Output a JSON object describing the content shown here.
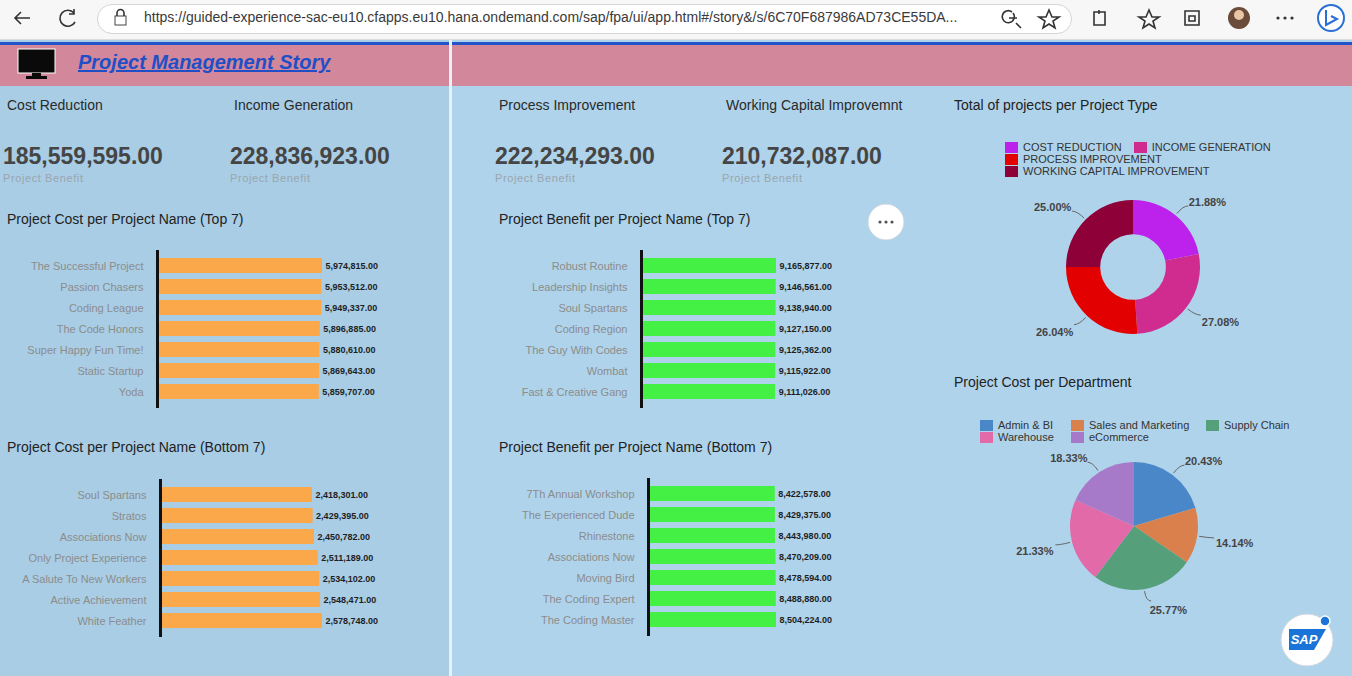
{
  "browser": {
    "url": "https://guided-experience-sac-eu10.cfapps.eu10.hana.ondemand.com/sap/fpa/ui/app.html#/story&/s/6C70F687986AD73CE55DA..."
  },
  "header": {
    "title": "Project Management Story"
  },
  "kpis": [
    {
      "title": "Cost Reduction",
      "value": "185,559,595.00",
      "caption": "Project Benefit"
    },
    {
      "title": "Income Generation",
      "value": "228,836,923.00",
      "caption": "Project Benefit"
    },
    {
      "title": "Process Improvement",
      "value": "222,234,293.00",
      "caption": "Project Benefit"
    },
    {
      "title": "Working Capital Improvemnt",
      "value": "210,732,087.00",
      "caption": "Project Benefit"
    }
  ],
  "chart_data": [
    {
      "type": "bar",
      "orientation": "horizontal",
      "title": "Project Cost per Project Name (Top 7)",
      "categories": [
        "The Successful Project",
        "Passion Chasers",
        "Coding League",
        "The Code Honors",
        "Super Happy Fun Time!",
        "Static Startup",
        "Yoda"
      ],
      "values": [
        5974815,
        5953512,
        5949337,
        5896885,
        5880610,
        5869643,
        5859707
      ],
      "value_labels": [
        "5,974,815.00",
        "5,953,512.00",
        "5,949,337.00",
        "5,896,885.00",
        "5,880,610.00",
        "5,869,643.00",
        "5,859,707.00"
      ],
      "color": "#fba84b",
      "xlim": [
        0,
        5974815
      ],
      "data_labels": true,
      "tick_labels": "y"
    },
    {
      "type": "bar",
      "orientation": "horizontal",
      "title": "Project Benefit per Project Name (Top 7)",
      "categories": [
        "Robust Routine",
        "Leadership Insights",
        "Soul Spartans",
        "Coding Region",
        "The Guy With Codes",
        "Wombat",
        "Fast & Creative Gang"
      ],
      "values": [
        9165877,
        9146561,
        9138940,
        9127150,
        9125362,
        9115922,
        9111026
      ],
      "value_labels": [
        "9,165,877.00",
        "9,146,561.00",
        "9,138,940.00",
        "9,127,150.00",
        "9,125,362.00",
        "9,115,922.00",
        "9,111,026.00"
      ],
      "color": "#44f044",
      "xlim": [
        0,
        9165877
      ],
      "data_labels": true,
      "tick_labels": "y"
    },
    {
      "type": "bar",
      "orientation": "horizontal",
      "title": "Project Cost per Project Name (Bottom 7)",
      "categories": [
        "Soul Spartans",
        "Stratos",
        "Associations Now",
        "Only Project Experience",
        "A Salute To New Workers",
        "Active Achievement",
        "White Feather"
      ],
      "values": [
        2418301,
        2429395,
        2450782,
        2511189,
        2534102,
        2548471,
        2578748
      ],
      "value_labels": [
        "2,418,301.00",
        "2,429,395.00",
        "2,450,782.00",
        "2,511,189.00",
        "2,534,102.00",
        "2,548,471.00",
        "2,578,748.00"
      ],
      "color": "#fba84b",
      "xlim": [
        0,
        2578748
      ],
      "data_labels": true,
      "tick_labels": "y"
    },
    {
      "type": "bar",
      "orientation": "horizontal",
      "title": "Project Benefit per Project Name (Bottom 7)",
      "categories": [
        "7Th Annual Workshop",
        "The Experienced Dude",
        "Rhinestone",
        "Associations Now",
        "Moving Bird",
        "The Coding Expert",
        "The Coding Master"
      ],
      "values": [
        8422578,
        8429375,
        8443980,
        8470209,
        8478594,
        8488880,
        8504224
      ],
      "value_labels": [
        "8,422,578.00",
        "8,429,375.00",
        "8,443,980.00",
        "8,470,209.00",
        "8,478,594.00",
        "8,488,880.00",
        "8,504,224.00"
      ],
      "color": "#44f044",
      "xlim": [
        0,
        8504224
      ],
      "data_labels": true,
      "tick_labels": "y"
    },
    {
      "type": "donut",
      "title": "Total of projects per Project Type",
      "categories": [
        "COST REDUCTION",
        "INCOME GENERATION",
        "PROCESS IMPROVEMENT",
        "WORKING CAPITAL IMPROVEMENT"
      ],
      "values": [
        21.88,
        27.08,
        26.04,
        25.0
      ],
      "value_labels": [
        "21.88%",
        "27.08%",
        "26.04%",
        "25.00%"
      ],
      "colors": [
        "#bd22ec",
        "#d02b8f",
        "#e30000",
        "#8e0038"
      ],
      "legend": "top",
      "data_labels": true
    },
    {
      "type": "pie",
      "title": "Project Cost per Department",
      "categories": [
        "Admin & BI",
        "Sales and Marketing",
        "Supply Chain",
        "Warehouse",
        "eCommerce"
      ],
      "values": [
        20.43,
        14.14,
        25.77,
        21.33,
        18.33
      ],
      "value_labels": [
        "20.43%",
        "14.14%",
        "25.77%",
        "21.33%",
        "18.33%"
      ],
      "colors": [
        "#4a87c8",
        "#d9804d",
        "#55a07a",
        "#e26aa8",
        "#a779c9"
      ],
      "legend": "top",
      "data_labels": true
    }
  ],
  "badge": "SAP"
}
